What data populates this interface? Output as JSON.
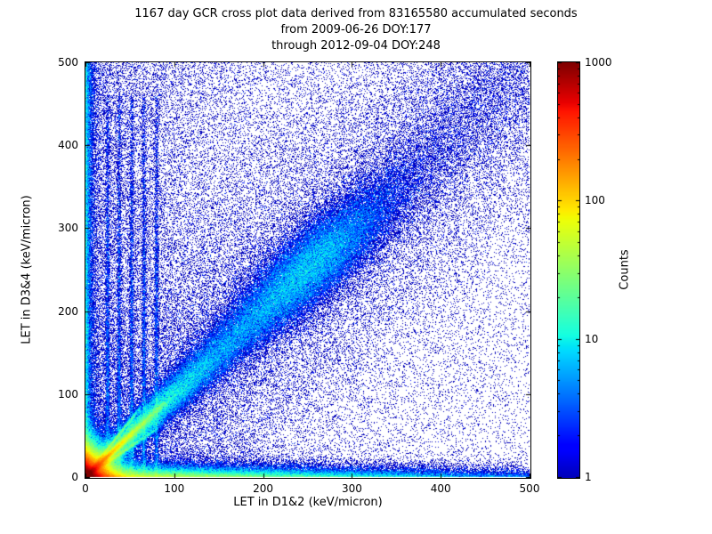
{
  "chart_data": {
    "type": "heatmap",
    "title": "1167 day GCR cross plot data derived from 83165580 accumulated seconds",
    "subtitle1": "from 2009-06-26 DOY:177",
    "subtitle2": "through 2012-09-04 DOY:248",
    "xlabel": "LET in D1&2 (keV/micron)",
    "ylabel": "LET in D3&4 (keV/micron)",
    "xlim": [
      0,
      500
    ],
    "ylim": [
      0,
      500
    ],
    "xticks": [
      0,
      100,
      200,
      300,
      400,
      500
    ],
    "yticks": [
      0,
      100,
      200,
      300,
      400,
      500
    ],
    "grid": false,
    "colorbar": {
      "label": "Counts",
      "scale": "log",
      "ticks": [
        1,
        10,
        100,
        1000
      ],
      "colormap": "jet",
      "color_low": "#00008f",
      "color_high": "#800000"
    },
    "distribution": {
      "seed": 1337,
      "components": [
        {
          "type": "exp_blob",
          "x": 0,
          "y": 0,
          "sx": 10,
          "sy": 10,
          "n": 220000
        },
        {
          "type": "diag_line",
          "t_decay": 25,
          "t_max": 90,
          "sigma": 2,
          "n": 50000
        },
        {
          "type": "diag_line",
          "t_decay": 130,
          "t_max": 500,
          "sigma": 5,
          "sigma_grow": 0.05,
          "n": 90000
        },
        {
          "type": "diag_gauss",
          "t_mean": 255,
          "t_sd": 45,
          "sigma": 20,
          "n": 40000
        },
        {
          "type": "ray",
          "slope": 0.72,
          "t_decay": 30,
          "t_max": 80,
          "sigma": 1.5,
          "n": 9000
        },
        {
          "type": "ray",
          "slope": 1.35,
          "t_decay": 28,
          "t_max": 62,
          "sigma": 1.5,
          "n": 7000
        },
        {
          "type": "h_band",
          "x_decay": 170,
          "y_decay": 5,
          "n": 70000
        },
        {
          "type": "v_band",
          "x_decay": 3.5,
          "y_max": 500,
          "n": 18000
        },
        {
          "type": "v_streak",
          "x": 25,
          "sx": 1.3,
          "y_decay": 300,
          "y_max": 460,
          "n": 4000
        },
        {
          "type": "v_streak",
          "x": 38,
          "sx": 1.3,
          "y_decay": 300,
          "y_max": 460,
          "n": 4000
        },
        {
          "type": "v_streak",
          "x": 52,
          "sx": 1.3,
          "y_decay": 300,
          "y_max": 460,
          "n": 4000
        },
        {
          "type": "v_streak",
          "x": 66,
          "sx": 1.3,
          "y_decay": 300,
          "y_max": 460,
          "n": 4000
        },
        {
          "type": "v_streak",
          "x": 80,
          "sx": 1.3,
          "y_decay": 300,
          "y_max": 460,
          "n": 4000
        },
        {
          "type": "uniform",
          "n": 20000
        },
        {
          "type": "left_scatter",
          "x_decay": 110,
          "n": 25000
        },
        {
          "type": "diag_halo",
          "sigma": 70,
          "n": 35000
        }
      ]
    }
  }
}
